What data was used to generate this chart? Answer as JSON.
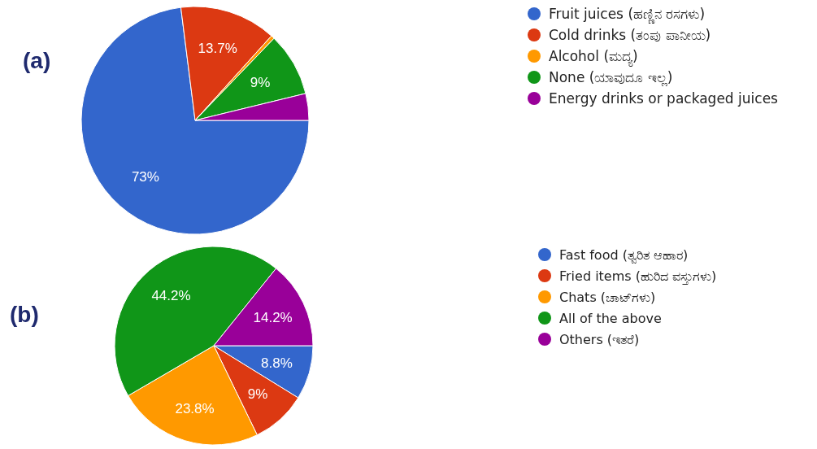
{
  "chart_data": [
    {
      "type": "pie",
      "title": "(a)",
      "categories": [
        "Fruit juices (ಹಣ್ಣಿನ ರಸಗಳು)",
        "Cold drinks (ತಂಪು ಪಾನೀಯ)",
        "Alcohol (ಮದ್ಯ)",
        "None (ಯಾವುದೂ ಇಲ್ಲ)",
        "Energy drinks or packaged juices"
      ],
      "values": [
        73,
        13.7,
        0.5,
        9,
        3.8
      ],
      "value_labels": [
        "73%",
        "13.7%",
        null,
        "9%",
        null
      ],
      "colors": [
        "#3366cc",
        "#dc3912",
        "#ff9900",
        "#109618",
        "#990099"
      ],
      "legend": "right"
    },
    {
      "type": "pie",
      "title": "(b)",
      "categories": [
        "Fast food (ತ್ವರಿತ ಆಹಾರ)",
        "Fried items (ಹುರಿದ ವಸ್ತುಗಳು)",
        "Chats (ಚಾಟ್‌ಗಳು)",
        "All of the above",
        "Others (ಇತರೆ)"
      ],
      "values": [
        8.8,
        9,
        23.8,
        44.2,
        14.2
      ],
      "value_labels": [
        "8.8%",
        "9%",
        "23.8%",
        "44.2%",
        "14.2%"
      ],
      "colors": [
        "#3366cc",
        "#dc3912",
        "#ff9900",
        "#109618",
        "#990099"
      ],
      "legend": "right"
    }
  ]
}
